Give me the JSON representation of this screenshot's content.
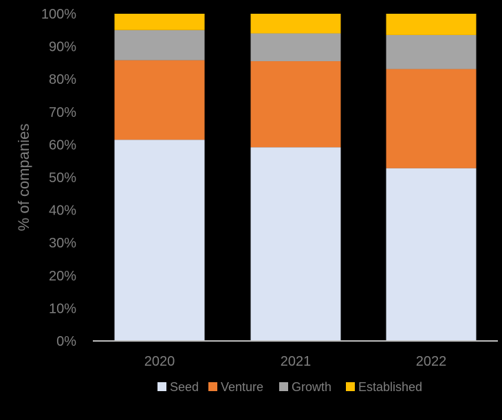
{
  "chart_data": {
    "type": "bar",
    "stacked": true,
    "title": "",
    "xlabel": "",
    "ylabel": "% of companies",
    "ylim": [
      0,
      100
    ],
    "yticks": [
      "0%",
      "10%",
      "20%",
      "30%",
      "40%",
      "50%",
      "60%",
      "70%",
      "80%",
      "90%",
      "100%"
    ],
    "categories": [
      "2020",
      "2021",
      "2022"
    ],
    "series": [
      {
        "name": "Seed",
        "color": "#DAE3F3",
        "values": [
          61.5,
          59.2,
          52.8
        ]
      },
      {
        "name": "Venture",
        "color": "#ED7D31",
        "values": [
          24.3,
          26.3,
          30.3
        ]
      },
      {
        "name": "Growth",
        "color": "#A5A5A5",
        "values": [
          9.2,
          8.5,
          10.4
        ]
      },
      {
        "name": "Established",
        "color": "#FFC000",
        "values": [
          5.0,
          6.0,
          6.5
        ]
      }
    ],
    "legend_position": "bottom",
    "colors": {
      "background": "#000000",
      "text": "#7F7F7F",
      "axis": "#BFBFBF"
    }
  }
}
